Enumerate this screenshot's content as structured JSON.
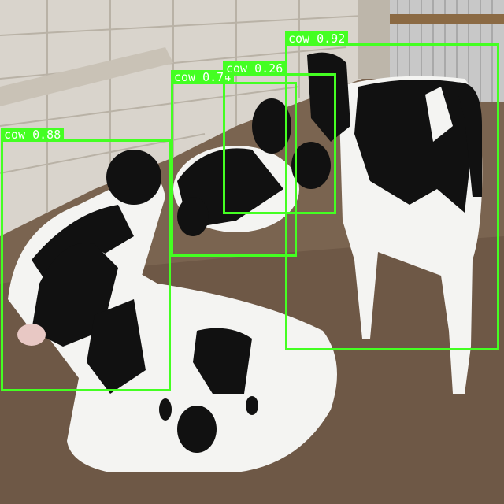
{
  "scene": {
    "description_name": "cows-in-pen",
    "colors": {
      "box": "#44ff22",
      "label_text": "#ffffff",
      "wall": "#d9d4cc",
      "ground": "#7a6450",
      "cow_black": "#111111",
      "cow_white": "#f4f4f2",
      "fence": "#c8c8c8"
    }
  },
  "detections": [
    {
      "class": "cow",
      "score": "0.88",
      "label": "cow 0.88"
    },
    {
      "class": "cow",
      "score": "0.74",
      "label": "cow 0.74"
    },
    {
      "class": "cow",
      "score": "0.26",
      "label": "cow 0.26"
    },
    {
      "class": "cow",
      "score": "0.92",
      "label": "cow 0.92"
    }
  ]
}
